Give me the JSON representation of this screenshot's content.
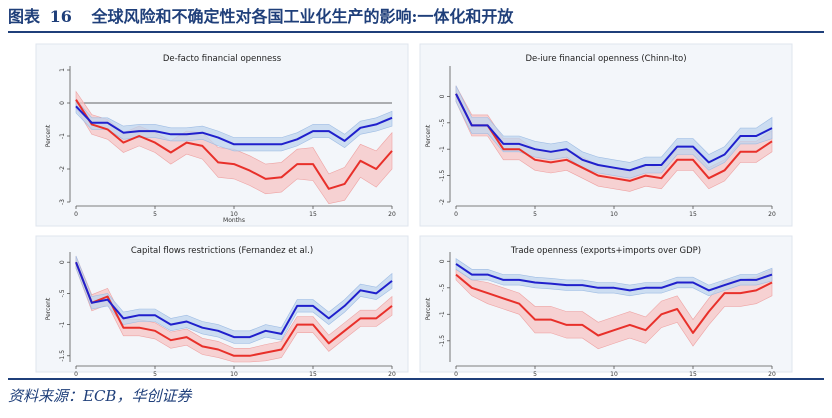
{
  "figure": {
    "title_prefix": "图表",
    "number": "16",
    "title": "全球风险和不确定性对各国工业化生产的影响:一体化和开放",
    "source": "资料来源：ECB，华创证券"
  },
  "colors": {
    "title": "#1f3f7a",
    "blue_line": "#2020cc",
    "blue_band": "#bfd4ee",
    "red_line": "#e8302a",
    "red_band": "#f7c4c4",
    "panel_bg": "#f3f6fa"
  },
  "chart_data": [
    {
      "type": "line",
      "title": "De-facto financial openness",
      "xlabel": "Months",
      "ylabel": "Percent",
      "xlim": [
        0,
        20
      ],
      "ylim": [
        -3,
        1
      ],
      "xticks": [
        0,
        5,
        10,
        15,
        20
      ],
      "yticks": [
        1,
        0,
        -1,
        -2,
        -3
      ],
      "zero_line": true,
      "series": [
        {
          "name": "blue",
          "x": [
            0,
            1,
            2,
            3,
            4,
            5,
            6,
            7,
            8,
            9,
            10,
            11,
            12,
            13,
            14,
            15,
            16,
            17,
            18,
            19,
            20
          ],
          "values": [
            -0.1,
            -0.6,
            -0.6,
            -0.9,
            -0.85,
            -0.85,
            -0.95,
            -0.95,
            -0.9,
            -1.05,
            -1.25,
            -1.25,
            -1.25,
            -1.25,
            -1.1,
            -0.85,
            -0.85,
            -1.15,
            -0.75,
            -0.65,
            -0.45
          ],
          "lower": [
            -0.3,
            -0.8,
            -0.8,
            -1.1,
            -1.05,
            -1.05,
            -1.15,
            -1.15,
            -1.1,
            -1.3,
            -1.45,
            -1.45,
            -1.45,
            -1.45,
            -1.3,
            -1.05,
            -1.05,
            -1.35,
            -0.95,
            -0.85,
            -0.7
          ],
          "upper": [
            0.1,
            -0.45,
            -0.45,
            -0.7,
            -0.65,
            -0.65,
            -0.75,
            -0.75,
            -0.7,
            -0.85,
            -1.05,
            -1.05,
            -1.05,
            -1.05,
            -0.9,
            -0.65,
            -0.65,
            -0.95,
            -0.55,
            -0.45,
            -0.25
          ]
        },
        {
          "name": "red",
          "x": [
            0,
            1,
            2,
            3,
            4,
            5,
            6,
            7,
            8,
            9,
            10,
            11,
            12,
            13,
            14,
            15,
            16,
            17,
            18,
            19,
            20
          ],
          "values": [
            0.1,
            -0.65,
            -0.8,
            -1.2,
            -1.0,
            -1.2,
            -1.5,
            -1.2,
            -1.3,
            -1.8,
            -1.85,
            -2.05,
            -2.3,
            -2.25,
            -1.85,
            -1.85,
            -2.6,
            -2.45,
            -1.75,
            -2.0,
            -1.45
          ],
          "lower": [
            -0.15,
            -0.95,
            -1.1,
            -1.5,
            -1.3,
            -1.5,
            -1.85,
            -1.55,
            -1.7,
            -2.25,
            -2.3,
            -2.5,
            -2.75,
            -2.7,
            -2.3,
            -2.35,
            -3.05,
            -2.95,
            -2.25,
            -2.55,
            -2.0
          ],
          "upper": [
            0.35,
            -0.35,
            -0.5,
            -0.9,
            -0.7,
            -0.9,
            -1.15,
            -0.85,
            -0.9,
            -1.35,
            -1.4,
            -1.6,
            -1.85,
            -1.8,
            -1.4,
            -1.35,
            -2.15,
            -1.95,
            -1.25,
            -1.45,
            -0.9
          ]
        }
      ]
    },
    {
      "type": "line",
      "title": "De-iure financial openness (Chinn-Ito)",
      "xlabel": "",
      "ylabel": "Percent",
      "xlim": [
        0,
        20
      ],
      "ylim": [
        -2,
        0.5
      ],
      "xticks": [
        0,
        5,
        10,
        15,
        20
      ],
      "yticks": [
        0,
        -0.5,
        -1,
        -1.5,
        -2
      ],
      "zero_line": false,
      "series": [
        {
          "name": "blue",
          "x": [
            0,
            1,
            2,
            3,
            4,
            5,
            6,
            7,
            8,
            9,
            10,
            11,
            12,
            13,
            14,
            15,
            16,
            17,
            18,
            19,
            20
          ],
          "values": [
            0.05,
            -0.55,
            -0.55,
            -0.9,
            -0.9,
            -1.0,
            -1.05,
            -1.0,
            -1.2,
            -1.3,
            -1.35,
            -1.4,
            -1.3,
            -1.3,
            -0.95,
            -0.95,
            -1.25,
            -1.1,
            -0.75,
            -0.75,
            -0.6
          ],
          "lower": [
            -0.1,
            -0.7,
            -0.7,
            -1.05,
            -1.05,
            -1.15,
            -1.2,
            -1.15,
            -1.35,
            -1.45,
            -1.5,
            -1.55,
            -1.45,
            -1.45,
            -1.1,
            -1.1,
            -1.4,
            -1.25,
            -0.9,
            -0.9,
            -0.8
          ],
          "upper": [
            0.2,
            -0.4,
            -0.4,
            -0.75,
            -0.75,
            -0.85,
            -0.9,
            -0.85,
            -1.05,
            -1.15,
            -1.2,
            -1.25,
            -1.15,
            -1.15,
            -0.8,
            -0.8,
            -1.1,
            -0.95,
            -0.6,
            -0.6,
            -0.4
          ]
        },
        {
          "name": "red",
          "x": [
            0,
            1,
            2,
            3,
            4,
            5,
            6,
            7,
            8,
            9,
            10,
            11,
            12,
            13,
            14,
            15,
            16,
            17,
            18,
            19,
            20
          ],
          "values": [
            0.05,
            -0.55,
            -0.55,
            -1.0,
            -1.0,
            -1.2,
            -1.25,
            -1.2,
            -1.35,
            -1.5,
            -1.55,
            -1.6,
            -1.5,
            -1.55,
            -1.2,
            -1.2,
            -1.55,
            -1.4,
            -1.05,
            -1.05,
            -0.85
          ],
          "lower": [
            -0.1,
            -0.75,
            -0.75,
            -1.2,
            -1.2,
            -1.4,
            -1.45,
            -1.4,
            -1.55,
            -1.7,
            -1.75,
            -1.8,
            -1.7,
            -1.75,
            -1.4,
            -1.4,
            -1.75,
            -1.6,
            -1.25,
            -1.25,
            -1.05
          ],
          "upper": [
            0.2,
            -0.35,
            -0.35,
            -0.8,
            -0.8,
            -1.0,
            -1.05,
            -1.0,
            -1.15,
            -1.3,
            -1.35,
            -1.4,
            -1.3,
            -1.35,
            -1.0,
            -1.0,
            -1.35,
            -1.2,
            -0.85,
            -0.85,
            -0.65
          ]
        }
      ]
    },
    {
      "type": "line",
      "title": "Capital flows restrictions (Fernandez et al.)",
      "xlabel": "",
      "ylabel": "Percent",
      "xlim": [
        0,
        20
      ],
      "ylim": [
        -1.6,
        0.1
      ],
      "xticks": [
        0,
        5,
        10,
        15,
        20
      ],
      "yticks": [
        0,
        -0.5,
        -1,
        -1.5
      ],
      "zero_line": false,
      "series": [
        {
          "name": "blue",
          "x": [
            0,
            1,
            2,
            3,
            4,
            5,
            6,
            7,
            8,
            9,
            10,
            11,
            12,
            13,
            14,
            15,
            16,
            17,
            18,
            19,
            20
          ],
          "values": [
            0.0,
            -0.65,
            -0.6,
            -0.9,
            -0.85,
            -0.85,
            -1.0,
            -0.95,
            -1.05,
            -1.1,
            -1.2,
            -1.2,
            -1.1,
            -1.15,
            -0.7,
            -0.7,
            -0.9,
            -0.7,
            -0.45,
            -0.5,
            -0.3
          ],
          "lower": [
            -0.1,
            -0.75,
            -0.7,
            -1.0,
            -0.95,
            -0.95,
            -1.1,
            -1.05,
            -1.15,
            -1.2,
            -1.3,
            -1.3,
            -1.2,
            -1.25,
            -0.8,
            -0.8,
            -1.0,
            -0.8,
            -0.55,
            -0.6,
            -0.42
          ],
          "upper": [
            0.1,
            -0.55,
            -0.5,
            -0.8,
            -0.75,
            -0.75,
            -0.9,
            -0.85,
            -0.95,
            -1.0,
            -1.1,
            -1.1,
            -1.0,
            -1.05,
            -0.6,
            -0.6,
            -0.8,
            -0.6,
            -0.35,
            -0.4,
            -0.18
          ]
        },
        {
          "name": "red",
          "x": [
            0,
            1,
            2,
            3,
            4,
            5,
            6,
            7,
            8,
            9,
            10,
            11,
            12,
            13,
            14,
            15,
            16,
            17,
            18,
            19,
            20
          ],
          "values": [
            0.0,
            -0.65,
            -0.55,
            -1.05,
            -1.05,
            -1.1,
            -1.25,
            -1.2,
            -1.35,
            -1.4,
            -1.5,
            -1.5,
            -1.45,
            -1.4,
            -1.0,
            -1.0,
            -1.3,
            -1.1,
            -0.9,
            -0.9,
            -0.7
          ],
          "lower": [
            -0.1,
            -0.78,
            -0.68,
            -1.18,
            -1.18,
            -1.23,
            -1.38,
            -1.33,
            -1.48,
            -1.53,
            -1.6,
            -1.6,
            -1.58,
            -1.53,
            -1.13,
            -1.13,
            -1.43,
            -1.23,
            -1.03,
            -1.03,
            -0.85
          ],
          "upper": [
            0.1,
            -0.52,
            -0.42,
            -0.92,
            -0.92,
            -0.97,
            -1.12,
            -1.07,
            -1.22,
            -1.27,
            -1.38,
            -1.38,
            -1.32,
            -1.27,
            -0.87,
            -0.87,
            -1.17,
            -0.97,
            -0.77,
            -0.77,
            -0.55
          ]
        }
      ]
    },
    {
      "type": "line",
      "title": "Trade openness (exports+imports over GDP)",
      "xlabel": "",
      "ylabel": "Percent",
      "xlim": [
        0,
        20
      ],
      "ylim": [
        -1.9,
        0.1
      ],
      "xticks": [
        0,
        5,
        10,
        15,
        20
      ],
      "yticks": [
        0,
        -0.5,
        -1,
        -1.5
      ],
      "zero_line": false,
      "series": [
        {
          "name": "blue",
          "x": [
            0,
            1,
            2,
            3,
            4,
            5,
            6,
            7,
            8,
            9,
            10,
            11,
            12,
            13,
            14,
            15,
            16,
            17,
            18,
            19,
            20
          ],
          "values": [
            -0.05,
            -0.25,
            -0.25,
            -0.35,
            -0.35,
            -0.4,
            -0.42,
            -0.45,
            -0.45,
            -0.5,
            -0.5,
            -0.55,
            -0.5,
            -0.5,
            -0.4,
            -0.4,
            -0.55,
            -0.45,
            -0.35,
            -0.35,
            -0.25
          ],
          "lower": [
            -0.15,
            -0.35,
            -0.35,
            -0.45,
            -0.45,
            -0.5,
            -0.52,
            -0.55,
            -0.55,
            -0.6,
            -0.6,
            -0.65,
            -0.6,
            -0.6,
            -0.5,
            -0.5,
            -0.65,
            -0.55,
            -0.45,
            -0.45,
            -0.37
          ],
          "upper": [
            0.05,
            -0.15,
            -0.15,
            -0.25,
            -0.25,
            -0.3,
            -0.32,
            -0.35,
            -0.35,
            -0.4,
            -0.4,
            -0.45,
            -0.4,
            -0.4,
            -0.3,
            -0.3,
            -0.45,
            -0.35,
            -0.25,
            -0.25,
            -0.13
          ]
        },
        {
          "name": "red",
          "x": [
            0,
            1,
            2,
            3,
            4,
            5,
            6,
            7,
            8,
            9,
            10,
            11,
            12,
            13,
            14,
            15,
            16,
            17,
            18,
            19,
            20
          ],
          "values": [
            -0.25,
            -0.5,
            -0.6,
            -0.7,
            -0.8,
            -1.1,
            -1.1,
            -1.2,
            -1.2,
            -1.4,
            -1.3,
            -1.2,
            -1.3,
            -1.0,
            -0.9,
            -1.35,
            -0.95,
            -0.6,
            -0.6,
            -0.55,
            -0.4
          ],
          "lower": [
            -0.35,
            -0.65,
            -0.8,
            -0.9,
            -1.0,
            -1.35,
            -1.35,
            -1.45,
            -1.45,
            -1.65,
            -1.55,
            -1.45,
            -1.55,
            -1.25,
            -1.15,
            -1.6,
            -1.2,
            -0.85,
            -0.85,
            -0.8,
            -0.65
          ],
          "upper": [
            -0.15,
            -0.35,
            -0.4,
            -0.5,
            -0.6,
            -0.85,
            -0.85,
            -0.95,
            -0.95,
            -1.15,
            -1.05,
            -0.95,
            -1.05,
            -0.75,
            -0.65,
            -1.1,
            -0.7,
            -0.35,
            -0.35,
            -0.3,
            -0.15
          ]
        }
      ]
    }
  ]
}
